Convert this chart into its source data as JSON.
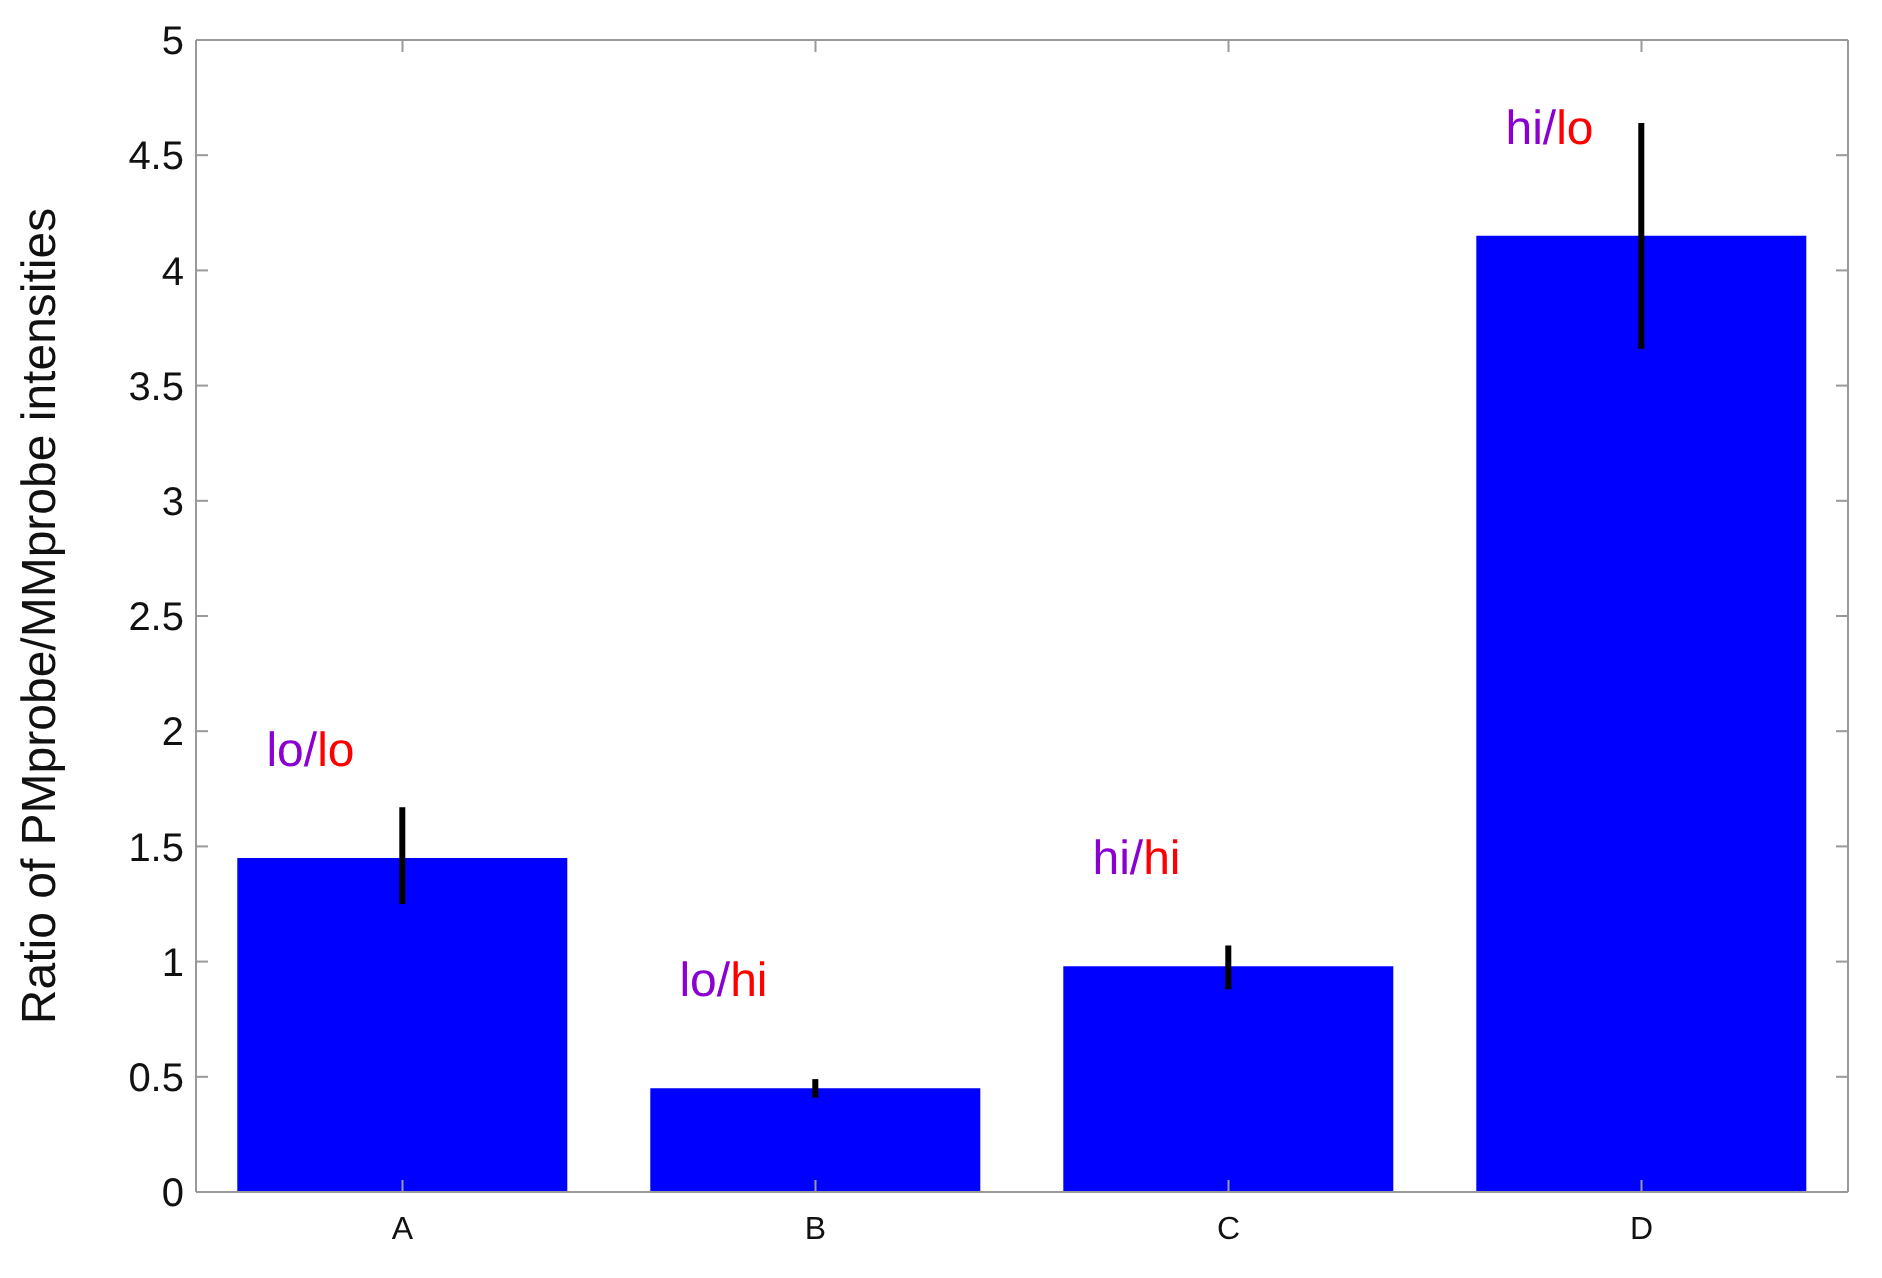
{
  "chart_data": {
    "type": "bar",
    "ylabel": "Ratio of PMprobe/MMprobe intensities",
    "categories": [
      "A",
      "B",
      "C",
      "D"
    ],
    "values": [
      1.45,
      0.45,
      0.98,
      4.15
    ],
    "errors": [
      [
        1.25,
        1.67
      ],
      [
        0.41,
        0.49
      ],
      [
        0.88,
        1.07
      ],
      [
        3.66,
        4.64
      ]
    ],
    "color": "#0000ff",
    "ylim": [
      0,
      5
    ],
    "yticks": [
      0,
      0.5,
      1,
      1.5,
      2,
      2.5,
      3,
      3.5,
      4,
      4.5,
      5
    ],
    "grid": false,
    "legend": false,
    "annotations": [
      "lo/lo",
      "lo/hi",
      "hi/hi",
      "hi/lo"
    ]
  }
}
